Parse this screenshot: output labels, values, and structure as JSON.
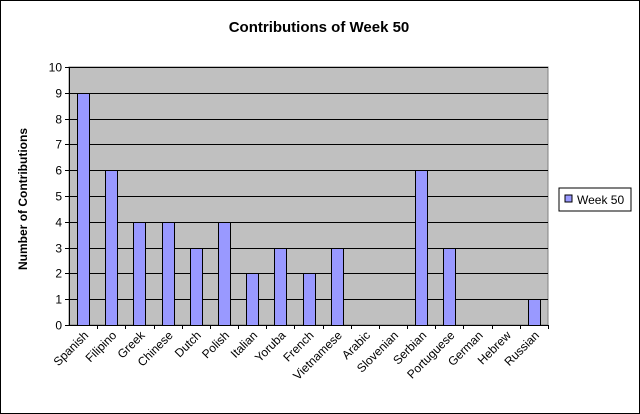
{
  "chart_data": {
    "type": "bar",
    "title": "Contributions of Week 50",
    "xlabel": "",
    "ylabel": "Number of Contributions",
    "ylim": [
      0,
      10
    ],
    "yticks": [
      0,
      1,
      2,
      3,
      4,
      5,
      6,
      7,
      8,
      9,
      10
    ],
    "categories": [
      "Spanish",
      "Filipino",
      "Greek",
      "Chinese",
      "Dutch",
      "Polish",
      "Italian",
      "Yoruba",
      "French",
      "Vietnamese",
      "Arabic",
      "Slovenian",
      "Serbian",
      "Portuguese",
      "German",
      "Hebrew",
      "Russian"
    ],
    "series": [
      {
        "name": "Week 50",
        "values": [
          9,
          6,
          4,
          4,
          3,
          4,
          2,
          3,
          2,
          3,
          0,
          0,
          6,
          3,
          0,
          0,
          1
        ]
      }
    ],
    "grid": true,
    "legend": "right",
    "colors": {
      "bar": "#9999ff",
      "bar_border": "#000000",
      "plot_bg": "#c0c0c0",
      "gridline": "#000000"
    }
  }
}
